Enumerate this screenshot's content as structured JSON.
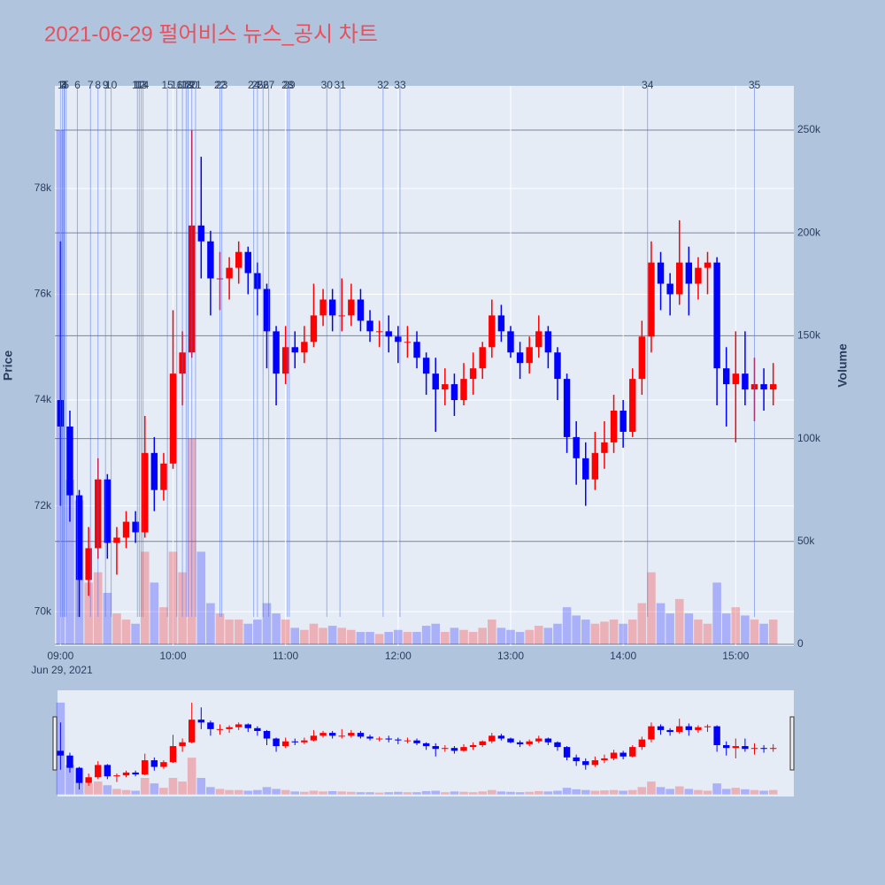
{
  "chart_data": {
    "type": "candlestick",
    "title": "2021-06-29 펄어비스 뉴스_공시 차트",
    "ylabel": "Price",
    "y2label": "Volume",
    "x_date_label": "Jun 29, 2021",
    "increasing_color": "#ff0000",
    "decreasing_color": "#0000ff",
    "news_color": "#4a6cf0",
    "xlim": [
      "2021-06-29 08:57",
      "2021-06-29 15:31"
    ],
    "xticks": [
      {
        "value": "2021-06-29 09:00",
        "label": "09:00"
      },
      {
        "value": "2021-06-29 10:00",
        "label": "10:00"
      },
      {
        "value": "2021-06-29 11:00",
        "label": "11:00"
      },
      {
        "value": "2021-06-29 12:00",
        "label": "12:00"
      },
      {
        "value": "2021-06-29 13:00",
        "label": "13:00"
      },
      {
        "value": "2021-06-29 14:00",
        "label": "14:00"
      },
      {
        "value": "2021-06-29 15:00",
        "label": "15:00"
      }
    ],
    "ylim": [
      69350,
      79940
    ],
    "yticks": [
      {
        "value": 70000,
        "label": "70k"
      },
      {
        "value": 72000,
        "label": "72k"
      },
      {
        "value": 74000,
        "label": "74k"
      },
      {
        "value": 76000,
        "label": "76k"
      },
      {
        "value": 78000,
        "label": "78k"
      }
    ],
    "y2lim": [
      -860,
      271500
    ],
    "y2ticks": [
      0,
      {
        "value": 50000,
        "label": "50k"
      },
      {
        "value": 100000,
        "label": "100k"
      },
      {
        "value": 150000,
        "label": "150k"
      },
      {
        "value": 200000,
        "label": "200k"
      },
      {
        "value": 250000,
        "label": "250k"
      }
    ],
    "x": [
      "2021-06-29 09:00",
      "2021-06-29 09:05",
      "2021-06-29 09:10",
      "2021-06-29 09:15",
      "2021-06-29 09:20",
      "2021-06-29 09:25",
      "2021-06-29 09:30",
      "2021-06-29 09:35",
      "2021-06-29 09:40",
      "2021-06-29 09:45",
      "2021-06-29 09:50",
      "2021-06-29 09:55",
      "2021-06-29 10:00",
      "2021-06-29 10:05",
      "2021-06-29 10:10",
      "2021-06-29 10:15",
      "2021-06-29 10:20",
      "2021-06-29 10:25",
      "2021-06-29 10:30",
      "2021-06-29 10:35",
      "2021-06-29 10:40",
      "2021-06-29 10:45",
      "2021-06-29 10:50",
      "2021-06-29 10:55",
      "2021-06-29 11:00",
      "2021-06-29 11:05",
      "2021-06-29 11:10",
      "2021-06-29 11:15",
      "2021-06-29 11:20",
      "2021-06-29 11:25",
      "2021-06-29 11:30",
      "2021-06-29 11:35",
      "2021-06-29 11:40",
      "2021-06-29 11:45",
      "2021-06-29 11:50",
      "2021-06-29 11:55",
      "2021-06-29 12:00",
      "2021-06-29 12:05",
      "2021-06-29 12:10",
      "2021-06-29 12:15",
      "2021-06-29 12:20",
      "2021-06-29 12:25",
      "2021-06-29 12:30",
      "2021-06-29 12:35",
      "2021-06-29 12:40",
      "2021-06-29 12:45",
      "2021-06-29 12:50",
      "2021-06-29 12:55",
      "2021-06-29 13:00",
      "2021-06-29 13:05",
      "2021-06-29 13:10",
      "2021-06-29 13:15",
      "2021-06-29 13:20",
      "2021-06-29 13:25",
      "2021-06-29 13:30",
      "2021-06-29 13:35",
      "2021-06-29 13:40",
      "2021-06-29 13:45",
      "2021-06-29 13:50",
      "2021-06-29 13:55",
      "2021-06-29 14:00",
      "2021-06-29 14:05",
      "2021-06-29 14:10",
      "2021-06-29 14:15",
      "2021-06-29 14:20",
      "2021-06-29 14:25",
      "2021-06-29 14:30",
      "2021-06-29 14:35",
      "2021-06-29 14:40",
      "2021-06-29 14:45",
      "2021-06-29 14:50",
      "2021-06-29 14:55",
      "2021-06-29 15:00",
      "2021-06-29 15:05",
      "2021-06-29 15:10",
      "2021-06-29 15:15",
      "2021-06-29 15:20"
    ],
    "open": [
      74000,
      73500,
      72200,
      70600,
      71200,
      72500,
      71300,
      71400,
      71700,
      71500,
      73000,
      72300,
      72800,
      74500,
      74900,
      77300,
      77000,
      76300,
      76300,
      76500,
      76800,
      76400,
      76100,
      75300,
      74500,
      75000,
      74900,
      75100,
      75600,
      75900,
      75600,
      75600,
      75900,
      75500,
      75300,
      75300,
      75200,
      75100,
      75100,
      74800,
      74500,
      74200,
      74300,
      74000,
      74400,
      74600,
      75000,
      75600,
      75300,
      74900,
      74700,
      75000,
      75300,
      74900,
      74400,
      73300,
      72900,
      72500,
      73000,
      73200,
      73800,
      73400,
      74400,
      75200,
      76600,
      76200,
      76000,
      76600,
      76200,
      76500,
      76600,
      74600,
      74300,
      74500,
      74200,
      74300,
      74200
    ],
    "high": [
      77000,
      73800,
      72300,
      71600,
      72900,
      72600,
      71600,
      71900,
      71900,
      73700,
      73300,
      73000,
      75700,
      75300,
      79100,
      78600,
      77200,
      76800,
      76700,
      77000,
      76900,
      76600,
      76200,
      75400,
      75400,
      75300,
      75400,
      76200,
      76100,
      76100,
      76300,
      76200,
      76100,
      75700,
      75500,
      75600,
      75400,
      75400,
      75300,
      74900,
      74800,
      74600,
      74500,
      74700,
      74900,
      75100,
      75900,
      75800,
      75400,
      75100,
      75200,
      75600,
      75400,
      75000,
      74500,
      73600,
      73200,
      73400,
      73600,
      74100,
      74000,
      74600,
      75500,
      77000,
      76800,
      76400,
      77400,
      76900,
      76700,
      76800,
      76700,
      75000,
      75300,
      75300,
      74800,
      74600,
      74700
    ],
    "low": [
      72000,
      71700,
      69900,
      70300,
      71000,
      71000,
      70700,
      71200,
      71300,
      71400,
      71900,
      72100,
      72700,
      73900,
      74800,
      76300,
      75600,
      75700,
      75900,
      76200,
      76000,
      75600,
      74600,
      73900,
      74300,
      74600,
      74700,
      75000,
      75400,
      75300,
      75300,
      75400,
      75300,
      75100,
      75000,
      74900,
      74700,
      74800,
      74600,
      74100,
      73400,
      73900,
      73700,
      73900,
      74100,
      74400,
      74800,
      75100,
      74800,
      74400,
      74500,
      74800,
      74600,
      74000,
      73000,
      72400,
      72000,
      72300,
      72700,
      73000,
      73100,
      73300,
      74100,
      74900,
      75700,
      75600,
      75800,
      75600,
      75900,
      76000,
      73900,
      73500,
      73200,
      73900,
      73600,
      73800,
      73900
    ],
    "close": [
      73500,
      72200,
      70600,
      71200,
      72500,
      71300,
      71400,
      71700,
      71500,
      73000,
      72300,
      72800,
      74500,
      74900,
      77300,
      77000,
      76300,
      76300,
      76500,
      76800,
      76400,
      76100,
      75300,
      74500,
      75000,
      74900,
      75100,
      75600,
      75900,
      75600,
      75600,
      75900,
      75500,
      75300,
      75300,
      75200,
      75100,
      75100,
      74800,
      74500,
      74200,
      74300,
      74000,
      74400,
      74600,
      75000,
      75600,
      75300,
      74900,
      74700,
      75000,
      75300,
      74900,
      74400,
      73300,
      72900,
      72500,
      73000,
      73200,
      73800,
      73400,
      74400,
      75200,
      76600,
      76200,
      76000,
      76600,
      76200,
      76500,
      76600,
      74600,
      74300,
      74500,
      74200,
      74300,
      74200,
      74300
    ],
    "volume": [
      250000,
      80000,
      70000,
      30000,
      35000,
      25000,
      15000,
      12000,
      10000,
      45000,
      30000,
      18000,
      45000,
      35000,
      100000,
      45000,
      20000,
      15000,
      12000,
      12000,
      10000,
      12000,
      20000,
      15000,
      12000,
      8000,
      7000,
      10000,
      8000,
      9000,
      8000,
      7000,
      6000,
      6000,
      5000,
      6000,
      7000,
      6000,
      6000,
      9000,
      10000,
      6000,
      8000,
      7000,
      6000,
      8000,
      12000,
      8000,
      7000,
      6000,
      7000,
      9000,
      8000,
      10000,
      18000,
      14000,
      12000,
      10000,
      11000,
      12000,
      10000,
      12000,
      20000,
      35000,
      20000,
      15000,
      22000,
      15000,
      12000,
      10000,
      30000,
      15000,
      18000,
      14000,
      12000,
      10000,
      12000
    ],
    "news": [
      {
        "label": "1",
        "x": "2021-06-29 09:00"
      },
      {
        "label": "2",
        "x": "2021-06-29 09:01"
      },
      {
        "label": "3",
        "x": "2021-06-29 09:02"
      },
      {
        "label": "4",
        "x": "2021-06-29 09:02"
      },
      {
        "label": "5",
        "x": "2021-06-29 09:03"
      },
      {
        "label": "6",
        "x": "2021-06-29 09:09"
      },
      {
        "label": "7",
        "x": "2021-06-29 09:16"
      },
      {
        "label": "8",
        "x": "2021-06-29 09:20"
      },
      {
        "label": "9",
        "x": "2021-06-29 09:24"
      },
      {
        "label": "10",
        "x": "2021-06-29 09:27"
      },
      {
        "label": "11",
        "x": "2021-06-29 09:41"
      },
      {
        "label": "12",
        "x": "2021-06-29 09:42"
      },
      {
        "label": "13",
        "x": "2021-06-29 09:43"
      },
      {
        "label": "14",
        "x": "2021-06-29 09:44"
      },
      {
        "label": "15",
        "x": "2021-06-29 09:57"
      },
      {
        "label": "16",
        "x": "2021-06-29 10:02"
      },
      {
        "label": "17",
        "x": "2021-06-29 10:05"
      },
      {
        "label": "18",
        "x": "2021-06-29 10:07"
      },
      {
        "label": "19",
        "x": "2021-06-29 10:08"
      },
      {
        "label": "20",
        "x": "2021-06-29 10:10"
      },
      {
        "label": "21",
        "x": "2021-06-29 10:12"
      },
      {
        "label": "22",
        "x": "2021-06-29 10:25"
      },
      {
        "label": "23",
        "x": "2021-06-29 10:26"
      },
      {
        "label": "24",
        "x": "2021-06-29 10:43"
      },
      {
        "label": "25",
        "x": "2021-06-29 10:45"
      },
      {
        "label": "26",
        "x": "2021-06-29 10:48"
      },
      {
        "label": "27",
        "x": "2021-06-29 10:51"
      },
      {
        "label": "28",
        "x": "2021-06-29 11:01"
      },
      {
        "label": "29",
        "x": "2021-06-29 11:02"
      },
      {
        "label": "30",
        "x": "2021-06-29 11:22"
      },
      {
        "label": "31",
        "x": "2021-06-29 11:29"
      },
      {
        "label": "32",
        "x": "2021-06-29 11:52"
      },
      {
        "label": "33",
        "x": "2021-06-29 12:01"
      },
      {
        "label": "34",
        "x": "2021-06-29 14:13"
      },
      {
        "label": "35",
        "x": "2021-06-29 15:10"
      }
    ]
  }
}
